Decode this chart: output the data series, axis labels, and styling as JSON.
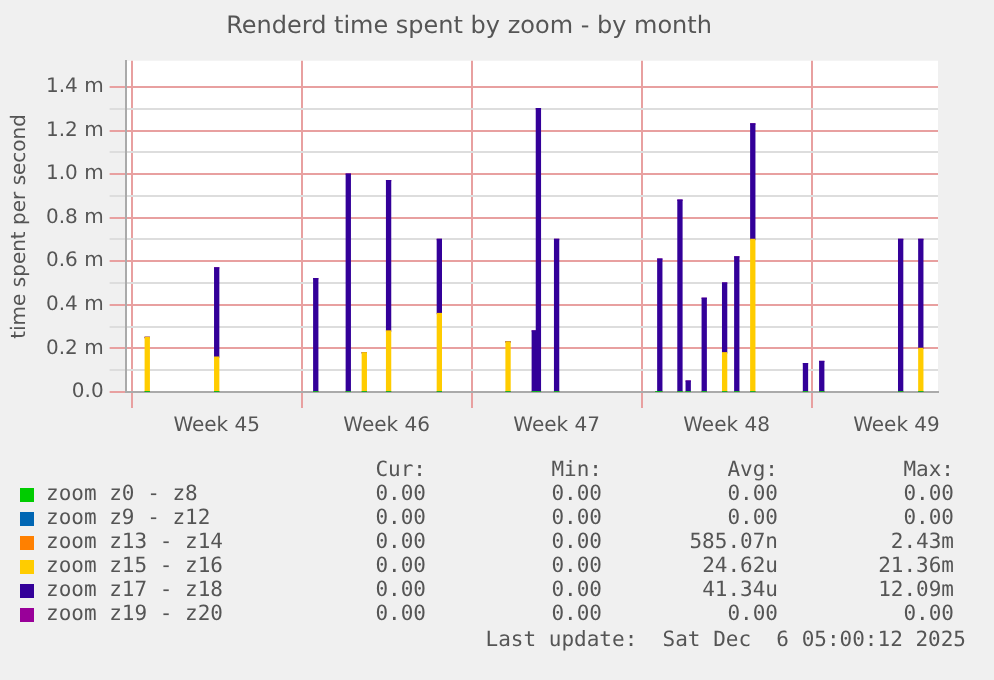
{
  "chart_data": {
    "type": "bar",
    "stacked": true,
    "title": "Renderd time spent by zoom - by month",
    "ylabel": "time spent per second",
    "x": [
      "2025-11-03T15:22",
      "2025-11-06T12:00",
      "2025-11-10T13:55",
      "2025-11-11T22:05",
      "2025-11-12T13:55",
      "2025-11-13T13:55",
      "2025-11-15T16:05",
      "2025-11-18T12:00",
      "2025-11-19T13:55",
      "2025-11-19T18:00",
      "2025-11-20T12:00",
      "2025-11-24T16:05",
      "2025-11-24T18:00",
      "2025-11-25T13:55",
      "2025-11-25T22:05",
      "2025-11-26T13:55",
      "2025-11-27T10:05",
      "2025-11-27T22:05",
      "2025-11-28T13:55",
      "2025-11-30T18:00",
      "2025-12-01T10:05",
      "2025-12-04T16:05",
      "2025-12-05T12:00"
    ],
    "xlim": [
      "2025-11-02T18:00",
      "2025-12-06T05:00"
    ],
    "xticks": [
      {
        "value": "2025-11-03T00:00",
        "label": null
      },
      {
        "value": "2025-11-06T12:00",
        "label": "Week 45"
      },
      {
        "value": "2025-11-10T00:00",
        "label": null
      },
      {
        "value": "2025-11-13T12:00",
        "label": "Week 46"
      },
      {
        "value": "2025-11-17T00:00",
        "label": null
      },
      {
        "value": "2025-11-20T12:00",
        "label": "Week 47"
      },
      {
        "value": "2025-11-24T00:00",
        "label": null
      },
      {
        "value": "2025-11-27T12:00",
        "label": "Week 48"
      },
      {
        "value": "2025-12-01T00:00",
        "label": null
      },
      {
        "value": "2025-12-04T12:00",
        "label": "Week 49"
      }
    ],
    "ylim": [
      0,
      1.52
    ],
    "yticks": [
      {
        "value": 0,
        "label": "0.0"
      },
      {
        "value": 0.1,
        "label": null
      },
      {
        "value": 0.2,
        "label": "0.2 m"
      },
      {
        "value": 0.3,
        "label": null
      },
      {
        "value": 0.4,
        "label": "0.4 m"
      },
      {
        "value": 0.5,
        "label": null
      },
      {
        "value": 0.6,
        "label": "0.6 m"
      },
      {
        "value": 0.7,
        "label": null
      },
      {
        "value": 0.8,
        "label": "0.8 m"
      },
      {
        "value": 0.9,
        "label": null
      },
      {
        "value": 1.0,
        "label": "1.0 m"
      },
      {
        "value": 1.1,
        "label": null
      },
      {
        "value": 1.2,
        "label": "1.2 m"
      },
      {
        "value": 1.3,
        "label": null
      },
      {
        "value": 1.4,
        "label": "1.4 m"
      }
    ],
    "grid": true,
    "legend": "bottom",
    "series": [
      {
        "name": "zoom z0 - z8",
        "color": "#00cc00",
        "values": [
          0,
          0,
          0,
          0,
          0,
          0,
          0,
          0,
          0,
          0,
          0,
          0,
          0,
          0,
          0,
          0,
          0,
          0,
          0,
          0,
          0,
          0,
          0
        ]
      },
      {
        "name": "zoom z9 - z12",
        "color": "#0066b3",
        "values": [
          0,
          0,
          0,
          0,
          0,
          0,
          0,
          0,
          0,
          0,
          0,
          0,
          0,
          0,
          0,
          0,
          0,
          0,
          0,
          0,
          0,
          0,
          0
        ]
      },
      {
        "name": "zoom z13 - z14",
        "color": "#ff8000",
        "values": [
          0,
          0,
          0,
          0,
          0,
          0,
          0,
          0,
          0,
          0,
          0,
          0,
          0,
          0,
          0,
          0,
          0,
          0,
          0,
          0,
          0,
          0,
          0
        ]
      },
      {
        "name": "zoom z15 - z16",
        "color": "#ffcc00",
        "values": [
          0.25,
          0.16,
          0,
          0,
          0.18,
          0.28,
          0.36,
          0.23,
          0,
          0,
          0,
          0,
          0,
          0,
          0,
          0,
          0.18,
          0,
          0.7,
          0,
          0,
          0,
          0.2
        ]
      },
      {
        "name": "zoom z17 - z18",
        "color": "#330099",
        "values": [
          0,
          0.41,
          0.52,
          1.0,
          0,
          0.69,
          0.34,
          0,
          0.28,
          1.3,
          0.7,
          null,
          0.61,
          0.88,
          0.05,
          0.43,
          0.32,
          0.62,
          0.53,
          0.13,
          0.14,
          0.7,
          0.5
        ]
      },
      {
        "name": "zoom z19 - z20",
        "color": "#990099",
        "values": [
          0,
          0,
          0,
          0,
          0,
          0,
          0,
          0,
          0,
          0,
          0,
          0,
          0,
          0,
          0,
          0,
          0,
          0,
          0,
          0,
          0,
          0,
          0
        ]
      }
    ],
    "annotations": [
      "Cur:",
      "Min:",
      "Avg:",
      "Max:",
      "0.00",
      "0.00",
      "0.00",
      "0.00",
      "0.00",
      "0.00",
      "0.00",
      "0.00",
      "0.00",
      "0.00",
      "585.07n",
      "2.43m",
      "0.00",
      "0.00",
      "24.62u",
      "21.36m",
      "0.00",
      "0.00",
      "41.34u",
      "12.09m",
      "0.00",
      "0.00",
      "0.00",
      "0.00",
      "Last update:  Sat Dec  6 05:00:12 2025"
    ]
  }
}
